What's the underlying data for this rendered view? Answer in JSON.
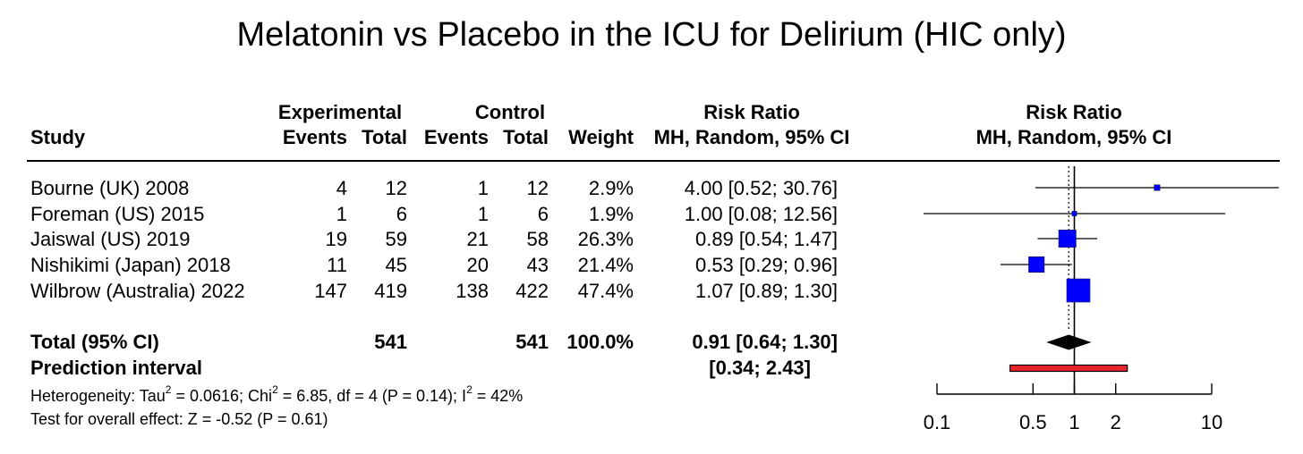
{
  "title": "Melatonin vs Placebo in the ICU for Delirium (HIC only)",
  "headers": {
    "study": "Study",
    "experimental": "Experimental",
    "control": "Control",
    "events": "Events",
    "total": "Total",
    "weight": "Weight",
    "rr_title": "Risk Ratio",
    "rr_method": "MH, Random, 95% CI",
    "plot_title": "Risk Ratio",
    "plot_method": "MH, Random, 95% CI"
  },
  "studies": [
    {
      "study": "Bourne (UK) 2008",
      "e_events": "4",
      "e_total": "12",
      "c_events": "1",
      "c_total": "12",
      "weight": "2.9%",
      "ci_text": "4.00 [0.52; 30.76]"
    },
    {
      "study": "Foreman (US) 2015",
      "e_events": "1",
      "e_total": "6",
      "c_events": "1",
      "c_total": "6",
      "weight": "1.9%",
      "ci_text": "1.00 [0.08; 12.56]"
    },
    {
      "study": "Jaiswal (US) 2019",
      "e_events": "19",
      "e_total": "59",
      "c_events": "21",
      "c_total": "58",
      "weight": "26.3%",
      "ci_text": "0.89 [0.54;  1.47]"
    },
    {
      "study": "Nishikimi (Japan) 2018",
      "e_events": "11",
      "e_total": "45",
      "c_events": "20",
      "c_total": "43",
      "weight": "21.4%",
      "ci_text": "0.53 [0.29;  0.96]"
    },
    {
      "study": "Wilbrow (Australia) 2022",
      "e_events": "147",
      "e_total": "419",
      "c_events": "138",
      "c_total": "422",
      "weight": "47.4%",
      "ci_text": "1.07 [0.89;  1.30]"
    }
  ],
  "total_row": {
    "label": "Total (95% CI)",
    "e_total": "541",
    "c_total": "541",
    "weight": "100.0%",
    "ci_text": "0.91 [0.64;  1.30]"
  },
  "prediction": {
    "label": "Prediction interval",
    "ci_text": "[0.34;  2.43]"
  },
  "heterogeneity": {
    "p1": "Heterogeneity: Tau",
    "sup1": "2",
    "p2": " = 0.0616; Chi",
    "sup2": "2",
    "p3": " = 6.85, df = 4 (P = 0.14); I",
    "sup3": "2",
    "p4": " = 42%"
  },
  "overall_effect": "Test for overall effect: Z = -0.52 (P = 0.61)",
  "chart_data": {
    "type": "forest",
    "scale": "log",
    "xlim": [
      0.1,
      10
    ],
    "ticks": [
      {
        "value": 0.1,
        "label": "0.1"
      },
      {
        "value": 0.5,
        "label": "0.5"
      },
      {
        "value": 1,
        "label": "1"
      },
      {
        "value": 2,
        "label": "2"
      },
      {
        "value": 10,
        "label": "10"
      }
    ],
    "reference_line": 1,
    "summary_dotted_line": 0.91,
    "studies": [
      {
        "name": "Bourne (UK) 2008",
        "rr": 4.0,
        "lower": 0.52,
        "upper": 30.76,
        "weight": 2.9
      },
      {
        "name": "Foreman (US) 2015",
        "rr": 1.0,
        "lower": 0.08,
        "upper": 12.56,
        "weight": 1.9
      },
      {
        "name": "Jaiswal (US) 2019",
        "rr": 0.89,
        "lower": 0.54,
        "upper": 1.47,
        "weight": 26.3
      },
      {
        "name": "Nishikimi (Japan) 2018",
        "rr": 0.53,
        "lower": 0.29,
        "upper": 0.96,
        "weight": 21.4
      },
      {
        "name": "Wilbrow (Australia) 2022",
        "rr": 1.07,
        "lower": 0.89,
        "upper": 1.3,
        "weight": 47.4
      }
    ],
    "summary": {
      "rr": 0.91,
      "lower": 0.64,
      "upper": 1.3
    },
    "prediction_interval": {
      "lower": 0.34,
      "upper": 2.43
    },
    "colors": {
      "square": "#0000ff",
      "diamond": "#000000",
      "prediction": "#e8262a",
      "line": "#000000"
    }
  }
}
